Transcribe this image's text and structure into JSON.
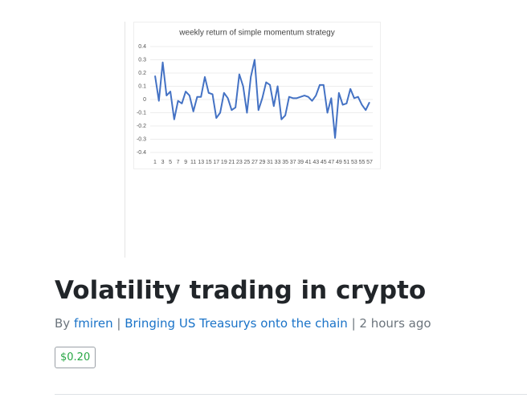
{
  "chart_data": {
    "type": "line",
    "title": "weekly return of simple momentum strategy",
    "categories": [
      "1",
      null,
      "3",
      null,
      "5",
      null,
      "7",
      null,
      "9",
      null,
      "11",
      null,
      "13",
      null,
      "15",
      null,
      "17",
      null,
      "19",
      null,
      "21",
      null,
      "23",
      null,
      "25",
      null,
      "27",
      null,
      "29",
      null,
      "31",
      null,
      "33",
      null,
      "35",
      null,
      "37",
      null,
      "39",
      null,
      "41",
      null,
      "43",
      null,
      "45",
      null,
      "47",
      null,
      "49",
      null,
      "51",
      null,
      "53",
      null,
      "55",
      null,
      "57"
    ],
    "values": [
      0.18,
      -0.01,
      0.28,
      0.03,
      0.06,
      -0.15,
      -0.01,
      -0.03,
      0.06,
      0.03,
      -0.09,
      0.02,
      0.02,
      0.17,
      0.05,
      0.04,
      -0.14,
      -0.1,
      0.05,
      0.01,
      -0.08,
      -0.06,
      0.19,
      0.1,
      -0.1,
      0.17,
      0.3,
      -0.08,
      0.01,
      0.13,
      0.11,
      -0.05,
      0.1,
      -0.15,
      -0.12,
      0.02,
      0.01,
      0.01,
      0.02,
      0.03,
      0.02,
      -0.01,
      0.03,
      0.11,
      0.11,
      -0.1,
      0.01,
      -0.29,
      0.05,
      -0.04,
      -0.03,
      0.08,
      0.01,
      0.02,
      -0.04,
      -0.08,
      -0.02
    ],
    "color": "#4472c4",
    "ylim": [
      -0.4,
      0.4
    ],
    "yticks": [
      -0.4,
      -0.3,
      -0.2,
      -0.1,
      0,
      0.1,
      0.2,
      0.3,
      0.4
    ],
    "grid": true
  },
  "post": {
    "title": "Volatility trading in crypto",
    "by": "By",
    "author": "fmiren",
    "separator": "|",
    "publication": "Bringing US Treasurys onto the chain",
    "time": "2 hours ago",
    "price": "$0.20"
  }
}
